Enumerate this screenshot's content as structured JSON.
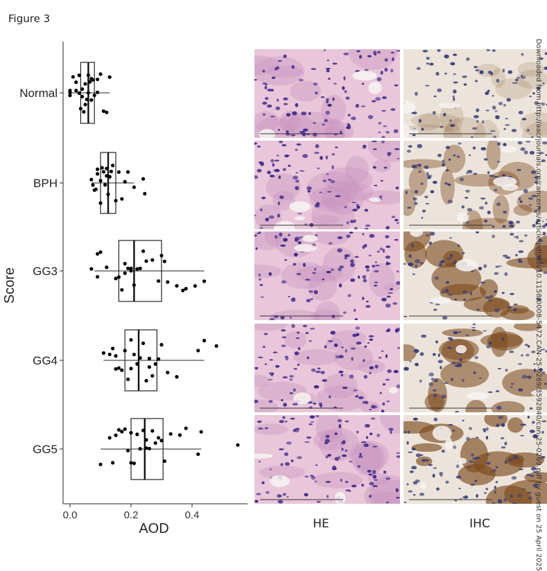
{
  "figure_label": "Figure 3",
  "chart_data": {
    "type": "boxplot",
    "orientation": "horizontal",
    "xlabel": "AOD",
    "ylabel": "Score",
    "xlim": [
      -0.02,
      0.57
    ],
    "xticks": [
      0.0,
      0.2,
      0.4
    ],
    "xtick_labels": [
      "0.0",
      "0.2",
      "0.4"
    ],
    "categories": [
      "Normal",
      "BPH",
      "GG3",
      "GG4",
      "GG5"
    ],
    "groups": [
      {
        "name": "Normal",
        "whisker_low": 0.0,
        "q1": 0.035,
        "median": 0.06,
        "q3": 0.08,
        "whisker_high": 0.13,
        "points": [
          0.0,
          0.0,
          0.01,
          0.02,
          0.02,
          0.03,
          0.03,
          0.035,
          0.04,
          0.04,
          0.05,
          0.05,
          0.055,
          0.06,
          0.06,
          0.065,
          0.07,
          0.07,
          0.08,
          0.09,
          0.09,
          0.1,
          0.11,
          0.12,
          0.13,
          0.0,
          0.045,
          0.075
        ]
      },
      {
        "name": "BPH",
        "whisker_low": 0.07,
        "q1": 0.1,
        "median": 0.125,
        "q3": 0.15,
        "whisker_high": 0.21,
        "points": [
          0.07,
          0.075,
          0.08,
          0.09,
          0.09,
          0.1,
          0.1,
          0.11,
          0.115,
          0.12,
          0.12,
          0.125,
          0.13,
          0.13,
          0.14,
          0.15,
          0.16,
          0.17,
          0.18,
          0.19,
          0.21,
          0.24,
          0.245,
          0.085,
          0.105,
          0.135
        ]
      },
      {
        "name": "GG3",
        "whisker_low": 0.08,
        "q1": 0.16,
        "median": 0.21,
        "q3": 0.3,
        "whisker_high": 0.44,
        "points": [
          0.07,
          0.09,
          0.1,
          0.12,
          0.15,
          0.16,
          0.17,
          0.18,
          0.19,
          0.2,
          0.2,
          0.21,
          0.22,
          0.23,
          0.25,
          0.27,
          0.29,
          0.3,
          0.31,
          0.32,
          0.35,
          0.37,
          0.38,
          0.41,
          0.44,
          0.09,
          0.18,
          0.24
        ]
      },
      {
        "name": "GG4",
        "whisker_low": 0.11,
        "q1": 0.18,
        "median": 0.225,
        "q3": 0.285,
        "whisker_high": 0.44,
        "points": [
          0.11,
          0.13,
          0.14,
          0.15,
          0.16,
          0.17,
          0.18,
          0.19,
          0.2,
          0.21,
          0.22,
          0.23,
          0.24,
          0.25,
          0.26,
          0.27,
          0.28,
          0.29,
          0.3,
          0.32,
          0.35,
          0.42,
          0.44,
          0.48,
          0.15,
          0.2,
          0.26
        ]
      },
      {
        "name": "GG5",
        "whisker_low": 0.1,
        "q1": 0.2,
        "median": 0.245,
        "q3": 0.305,
        "whisker_high": 0.43,
        "points": [
          0.1,
          0.13,
          0.14,
          0.15,
          0.16,
          0.17,
          0.18,
          0.19,
          0.2,
          0.21,
          0.22,
          0.23,
          0.24,
          0.25,
          0.26,
          0.27,
          0.28,
          0.29,
          0.3,
          0.31,
          0.33,
          0.36,
          0.38,
          0.42,
          0.43,
          0.55,
          0.2,
          0.25
        ]
      }
    ]
  },
  "image_columns": [
    {
      "label": "HE",
      "stain": "he",
      "colors": {
        "bg": "#e9c6d9",
        "nuc": "#3f2a8a",
        "mid": "#c58fbd"
      }
    },
    {
      "label": "IHC",
      "stain": "ihc",
      "colors": {
        "bg": "#ece4da",
        "nuc": "#3a3f78",
        "mid": "#7b4a1c"
      }
    }
  ],
  "image_rows": [
    "Normal",
    "BPH",
    "GG3",
    "GG4",
    "GG5"
  ],
  "ihc_intensity": [
    0.2,
    0.55,
    0.8,
    0.75,
    0.85
  ],
  "watermark": "Downloaded from http://aacrjournals.org/cancerres/article-pdf/doi/10.1158/0008-5472.CAN-25-0269/3592840/can-25-0269.pdf by guest on 25 April 2025"
}
